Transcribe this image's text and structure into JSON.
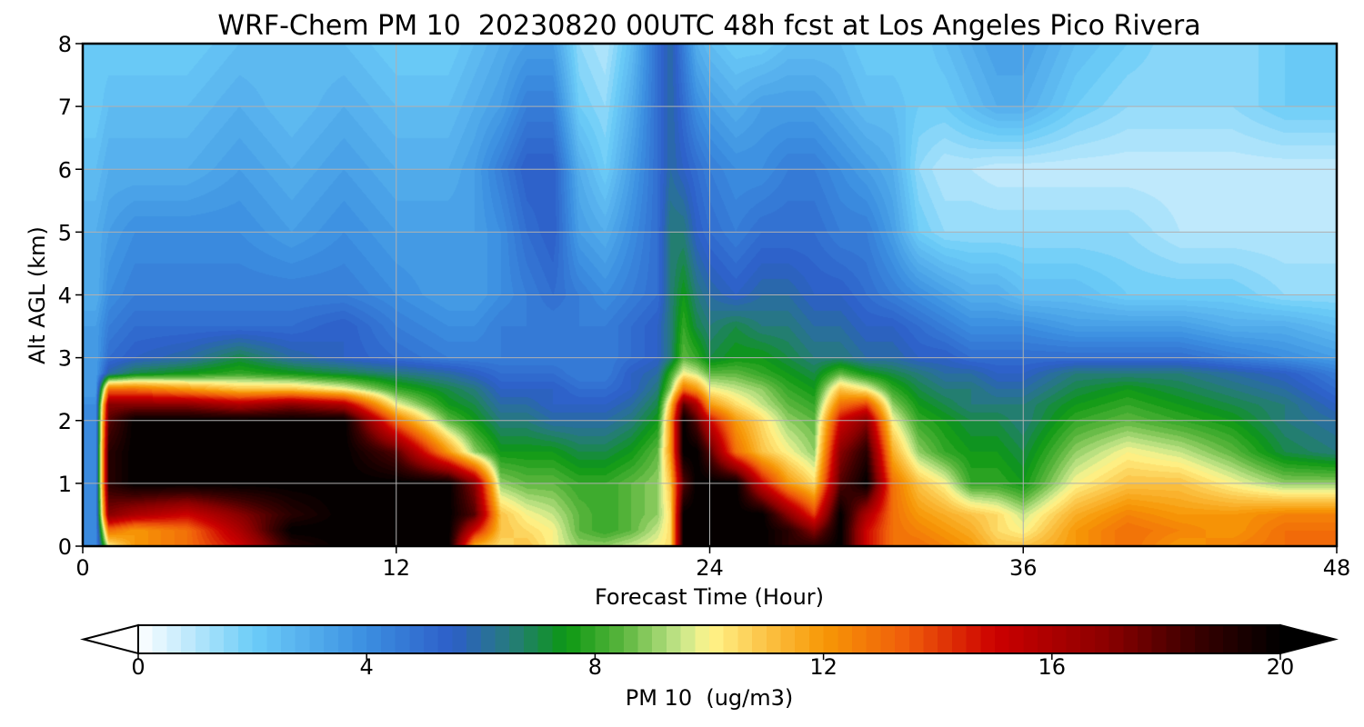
{
  "chart_data": {
    "type": "heatmap",
    "title": "WRF-Chem PM 10  20230820 00UTC 48h fcst at Los Angeles Pico Rivera",
    "xlabel": "Forecast Time (Hour)",
    "ylabel": "Alt AGL (km)",
    "xlim": [
      0,
      48
    ],
    "ylim": [
      0,
      8
    ],
    "x_ticks": [
      "0",
      "12",
      "24",
      "36",
      "48"
    ],
    "y_ticks": [
      "0",
      "1",
      "2",
      "3",
      "4",
      "5",
      "6",
      "7",
      "8"
    ],
    "grid": true,
    "colorbar": {
      "label": "PM 10  (ug/m3)",
      "range": [
        0,
        20
      ],
      "ticks": [
        "0",
        "4",
        "8",
        "12",
        "16",
        "20"
      ],
      "extend": "both",
      "stops": [
        {
          "v": 0,
          "c": "#ffffff"
        },
        {
          "v": 2,
          "c": "#6ccdf8"
        },
        {
          "v": 4,
          "c": "#3b8ee0"
        },
        {
          "v": 5.5,
          "c": "#2d5ec8"
        },
        {
          "v": 6.5,
          "c": "#267a7e"
        },
        {
          "v": 7.5,
          "c": "#0c9812"
        },
        {
          "v": 8.5,
          "c": "#5cb63e"
        },
        {
          "v": 9.5,
          "c": "#c6e68a"
        },
        {
          "v": 10,
          "c": "#fff58c"
        },
        {
          "v": 11,
          "c": "#fbc244"
        },
        {
          "v": 12,
          "c": "#f79806"
        },
        {
          "v": 13.5,
          "c": "#ef5a0a"
        },
        {
          "v": 15,
          "c": "#cc0000"
        },
        {
          "v": 17,
          "c": "#8a0000"
        },
        {
          "v": 18.5,
          "c": "#3a0000"
        },
        {
          "v": 20,
          "c": "#000000"
        }
      ]
    },
    "x": [
      0,
      0.5,
      1,
      2,
      4,
      6,
      8,
      10,
      12,
      14,
      15,
      16,
      17,
      18,
      19,
      20,
      21,
      22,
      22.5,
      23,
      23.5,
      24,
      25,
      26,
      27,
      28,
      29,
      30,
      31,
      32,
      33,
      34,
      35,
      36,
      38,
      40,
      42,
      44,
      46,
      48
    ],
    "y": [
      0,
      0.25,
      0.5,
      1,
      1.5,
      2,
      2.25,
      2.5,
      2.75,
      3,
      3.5,
      4,
      5,
      6,
      7,
      8
    ],
    "z": [
      [
        4,
        4,
        10,
        12,
        13,
        15,
        19,
        20,
        20,
        20,
        11.5,
        10.5,
        11,
        10,
        9,
        9,
        9.5,
        10,
        10.5,
        20,
        20,
        20,
        20,
        20,
        19,
        19,
        20,
        15,
        13,
        13,
        12.5,
        12,
        11,
        11,
        12,
        13,
        12,
        12.5,
        13,
        13
      ],
      [
        4,
        4,
        13,
        12,
        13,
        16,
        20,
        20,
        20,
        20,
        15,
        11,
        10.5,
        10,
        8.5,
        8,
        8.5,
        9.5,
        10.5,
        20,
        20,
        20,
        20,
        20,
        19,
        17,
        20,
        15,
        13,
        12.5,
        12,
        11.5,
        10.5,
        10,
        12,
        13,
        12.5,
        12,
        13,
        13
      ],
      [
        4,
        4,
        17,
        16,
        15,
        17,
        19,
        20,
        20,
        20,
        18,
        11,
        10,
        9.5,
        8.5,
        8,
        8.5,
        9,
        10.5,
        20,
        20,
        20,
        20,
        20,
        17,
        14,
        20,
        16,
        13,
        12,
        11.5,
        11,
        10.5,
        9.5,
        11.5,
        12.5,
        12,
        12,
        12.5,
        12.5
      ],
      [
        4,
        4,
        19,
        20,
        20,
        20,
        20,
        20,
        20,
        20,
        17,
        9,
        8.5,
        8.5,
        8,
        8,
        8.5,
        9,
        11,
        18,
        20,
        20,
        20,
        15,
        12,
        10.5,
        18,
        20,
        13,
        11,
        10,
        8,
        8,
        7.5,
        10,
        11,
        11,
        10,
        9,
        9
      ],
      [
        4,
        4,
        19,
        20,
        20,
        20,
        20,
        20,
        18,
        12,
        9,
        7.5,
        7.5,
        7.5,
        7,
        7,
        7.5,
        8.5,
        12,
        20,
        20,
        18,
        13,
        11,
        10,
        9,
        17,
        19,
        11.5,
        9,
        8,
        7.5,
        7.5,
        7,
        9,
        10,
        9.5,
        8.5,
        7,
        6.5
      ],
      [
        4,
        4,
        18,
        20,
        20,
        20,
        20,
        20,
        13,
        8.5,
        7.5,
        6.5,
        6.5,
        6,
        6,
        6,
        6.5,
        7.5,
        12,
        20,
        18,
        15,
        12,
        10.5,
        9,
        8.5,
        15,
        17,
        10,
        8,
        7.5,
        7,
        7,
        6.5,
        8,
        8.5,
        8,
        7.5,
        6.5,
        6
      ],
      [
        4,
        4,
        17,
        17,
        17,
        16,
        17,
        16,
        10,
        7.5,
        7,
        6,
        6,
        5.5,
        5.5,
        5.5,
        6,
        7,
        11,
        18,
        16,
        12,
        10.5,
        9.5,
        8.5,
        8,
        13,
        14,
        9,
        7.5,
        7,
        6.5,
        6.5,
        6.5,
        7.5,
        8,
        7.5,
        7,
        6.5,
        5.5
      ],
      [
        3.5,
        3.5,
        13,
        13,
        12,
        11,
        11,
        10,
        8,
        7,
        6.5,
        5.5,
        5.5,
        5.5,
        5,
        5,
        5.5,
        6.5,
        9,
        13,
        12,
        10,
        9.5,
        9,
        8,
        7.5,
        11,
        10,
        8,
        7,
        6.5,
        6.5,
        6,
        6,
        7,
        7.5,
        7,
        6.5,
        6,
        5
      ],
      [
        3.5,
        3.5,
        6,
        7,
        7.5,
        8,
        7.5,
        7,
        6.5,
        6,
        5.5,
        5,
        5,
        5,
        4.5,
        4.5,
        5.5,
        6,
        8,
        10,
        9.5,
        8.5,
        8.5,
        8,
        7.5,
        7,
        8.5,
        7.5,
        7,
        6.5,
        6,
        6,
        5.5,
        5.5,
        6.5,
        6.5,
        6.5,
        6,
        5.5,
        4.5
      ],
      [
        3.5,
        3.5,
        5,
        5.5,
        6,
        7,
        6,
        5.5,
        5,
        4.5,
        4.5,
        4.5,
        4.5,
        4.5,
        4.5,
        4.5,
        5,
        5.5,
        6.5,
        8.5,
        8,
        7,
        7.5,
        7.5,
        7,
        6.5,
        6.5,
        6,
        6,
        5.5,
        5.5,
        5,
        5,
        5,
        5,
        5,
        5,
        4.5,
        4,
        3.5
      ],
      [
        3.5,
        3.5,
        4.5,
        5,
        5,
        5,
        5,
        5.5,
        4.5,
        4,
        4,
        4.5,
        4.5,
        4.5,
        4.5,
        4.5,
        5,
        5.5,
        6.5,
        8,
        7,
        6.5,
        7,
        6.5,
        6.5,
        6,
        6,
        5.5,
        5.5,
        5,
        4.5,
        4,
        4,
        4,
        3.5,
        3.5,
        3.5,
        3,
        3,
        2.5
      ],
      [
        3,
        3,
        4,
        4.5,
        4.5,
        4.5,
        4.5,
        4.5,
        4,
        3.5,
        3.5,
        4,
        4.5,
        5,
        4.5,
        4,
        4.5,
        5,
        6.5,
        7.5,
        6.5,
        6,
        5.5,
        6,
        6,
        5.5,
        5.5,
        5,
        4.5,
        4,
        3.5,
        3,
        3,
        2.5,
        2.5,
        2,
        2,
        2,
        1.5,
        1.5
      ],
      [
        3,
        3,
        3.5,
        4,
        4,
        4,
        3.5,
        4,
        3.5,
        3.5,
        3.5,
        4,
        5,
        5.5,
        3.5,
        3,
        4,
        5,
        6.5,
        6.5,
        5.5,
        5,
        4.5,
        5,
        5,
        5,
        4.5,
        4.5,
        3.5,
        2,
        1.5,
        1.5,
        1.5,
        1.5,
        1.5,
        1.5,
        1,
        1,
        1,
        1
      ],
      [
        2.5,
        2.5,
        3,
        3,
        3,
        3.5,
        3,
        3.5,
        3,
        3,
        3.5,
        4.5,
        5.5,
        5.5,
        3,
        2,
        3.5,
        5,
        6,
        5.5,
        5,
        4.5,
        4,
        4,
        4.5,
        4.5,
        4,
        3.5,
        3,
        1.5,
        1,
        1,
        0.8,
        0.8,
        0.8,
        0.8,
        0.8,
        0.8,
        0.8,
        0.8
      ],
      [
        2,
        2,
        2.5,
        2.5,
        2.5,
        3,
        2.5,
        3,
        2.5,
        2.5,
        3,
        3.5,
        4.5,
        4.5,
        2,
        1.5,
        3,
        5,
        6,
        5,
        4,
        3.5,
        3,
        3.5,
        3.5,
        3.5,
        3,
        2.5,
        2.5,
        2,
        2,
        2.5,
        3,
        3,
        2,
        1.5,
        1.5,
        1.5,
        2,
        2
      ],
      [
        2,
        2,
        2,
        2,
        2,
        2.5,
        2.5,
        2.5,
        2,
        2,
        2.5,
        3,
        3.5,
        3.5,
        1.5,
        1,
        2.5,
        5,
        6,
        4.5,
        3,
        2.5,
        2,
        2,
        2.5,
        2.5,
        2.5,
        2,
        2,
        2,
        2.5,
        3,
        3.5,
        3.5,
        2.5,
        2,
        1.5,
        1.5,
        2,
        2
      ]
    ]
  }
}
